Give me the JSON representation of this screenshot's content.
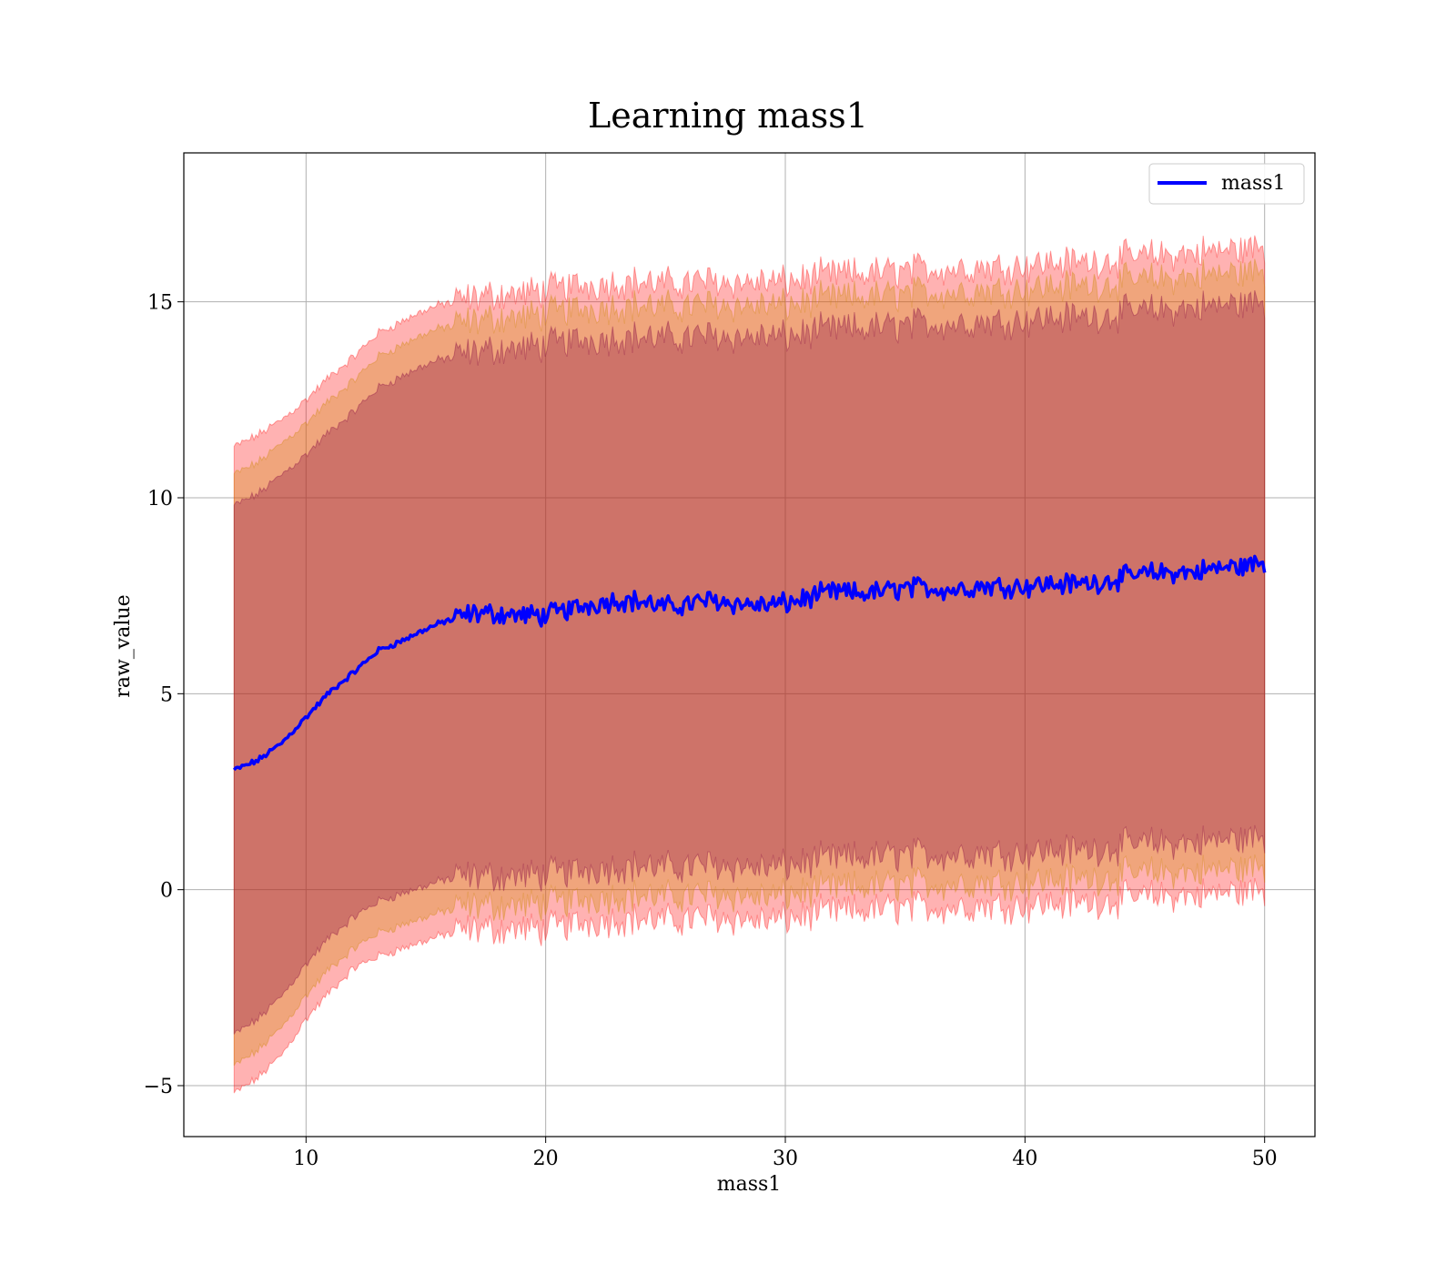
{
  "chart_data": {
    "type": "line",
    "title": "Learning mass1",
    "xlabel": "mass1",
    "ylabel": "raw_value",
    "xlim": [
      4.9,
      52.1
    ],
    "ylim": [
      -6.3,
      18.8
    ],
    "x_ticks": [
      10,
      20,
      30,
      40,
      50
    ],
    "y_ticks": [
      -5,
      0,
      5,
      10,
      15
    ],
    "x_tick_labels": [
      "10",
      "20",
      "30",
      "40",
      "50"
    ],
    "y_tick_labels": [
      "−5",
      "0",
      "5",
      "10",
      "15"
    ],
    "grid": true,
    "legend": {
      "position": "upper right",
      "entries": [
        "mass1"
      ]
    },
    "colors": {
      "line": "#0000ff",
      "band_outer": "#ff0000",
      "band_middle": "#cc8800",
      "band_inner": "#800040",
      "grid": "#b0b0b0"
    },
    "series": [
      {
        "name": "mass1",
        "x": [
          7,
          8,
          9,
          10,
          11,
          12,
          13,
          14,
          15,
          16,
          17,
          18,
          19,
          20,
          21,
          22,
          23,
          24,
          25,
          26,
          27,
          28,
          29,
          30,
          31,
          32,
          33,
          34,
          35,
          36,
          37,
          38,
          39,
          40,
          41,
          42,
          43,
          44,
          45,
          46,
          47,
          48,
          49,
          50
        ],
        "y": [
          3.05,
          3.3,
          3.75,
          4.4,
          5.05,
          5.55,
          6.1,
          6.35,
          6.65,
          6.9,
          7.05,
          7.05,
          7.0,
          7.0,
          7.15,
          7.3,
          7.4,
          7.35,
          7.2,
          7.3,
          7.4,
          7.3,
          7.25,
          7.3,
          7.45,
          7.6,
          7.55,
          7.6,
          7.7,
          7.7,
          7.65,
          7.75,
          7.75,
          7.75,
          7.8,
          7.8,
          7.85,
          7.95,
          8.05,
          8.1,
          8.1,
          8.2,
          8.25,
          8.35
        ]
      }
    ],
    "bands": [
      {
        "color": "#ff0000",
        "lower": [
          -5.2,
          -4.8,
          -4.2,
          -3.3,
          -2.6,
          -2.0,
          -1.7,
          -1.5,
          -1.3,
          -1.1,
          -1.0,
          -1.0,
          -1.0,
          -1.0,
          -0.9,
          -0.8,
          -0.75,
          -0.75,
          -0.8,
          -0.75,
          -0.7,
          -0.75,
          -0.8,
          -0.75,
          -0.65,
          -0.55,
          -0.55,
          -0.5,
          -0.45,
          -0.45,
          -0.45,
          -0.4,
          -0.4,
          -0.4,
          -0.35,
          -0.35,
          -0.3,
          -0.25,
          -0.2,
          -0.15,
          -0.15,
          -0.1,
          -0.05,
          0.0
        ],
        "upper": [
          11.3,
          11.6,
          12.0,
          12.5,
          13.1,
          13.6,
          14.2,
          14.5,
          14.8,
          15.0,
          15.1,
          15.2,
          15.2,
          15.3,
          15.4,
          15.45,
          15.5,
          15.5,
          15.45,
          15.5,
          15.55,
          15.5,
          15.5,
          15.5,
          15.6,
          15.7,
          15.7,
          15.75,
          15.8,
          15.85,
          15.85,
          15.9,
          15.9,
          15.95,
          16.0,
          16.0,
          16.05,
          16.1,
          16.15,
          16.2,
          16.25,
          16.3,
          16.35,
          16.4
        ]
      },
      {
        "color": "#cc8800",
        "lower": [
          -4.5,
          -4.1,
          -3.5,
          -2.7,
          -2.0,
          -1.5,
          -1.1,
          -0.9,
          -0.7,
          -0.5,
          -0.4,
          -0.4,
          -0.4,
          -0.35,
          -0.3,
          -0.2,
          -0.15,
          -0.15,
          -0.2,
          -0.15,
          -0.1,
          -0.15,
          -0.2,
          -0.15,
          -0.05,
          0.05,
          0.05,
          0.1,
          0.15,
          0.15,
          0.15,
          0.2,
          0.2,
          0.2,
          0.25,
          0.25,
          0.3,
          0.35,
          0.4,
          0.45,
          0.45,
          0.5,
          0.55,
          0.6
        ],
        "upper": [
          10.6,
          10.9,
          11.4,
          11.9,
          12.5,
          13.0,
          13.6,
          13.9,
          14.2,
          14.4,
          14.5,
          14.6,
          14.6,
          14.7,
          14.8,
          14.85,
          14.9,
          14.9,
          14.85,
          14.9,
          14.95,
          14.9,
          14.9,
          14.9,
          15.0,
          15.1,
          15.1,
          15.15,
          15.2,
          15.25,
          15.25,
          15.3,
          15.3,
          15.35,
          15.4,
          15.4,
          15.45,
          15.5,
          15.55,
          15.6,
          15.65,
          15.7,
          15.75,
          15.8
        ]
      },
      {
        "color": "#800040",
        "lower": [
          -3.7,
          -3.3,
          -2.7,
          -1.9,
          -1.2,
          -0.7,
          -0.3,
          -0.1,
          0.1,
          0.3,
          0.35,
          0.35,
          0.35,
          0.4,
          0.45,
          0.55,
          0.6,
          0.6,
          0.55,
          0.6,
          0.65,
          0.6,
          0.55,
          0.6,
          0.7,
          0.8,
          0.8,
          0.85,
          0.9,
          0.9,
          0.9,
          0.95,
          0.95,
          0.95,
          1.0,
          1.0,
          1.05,
          1.1,
          1.15,
          1.2,
          1.2,
          1.25,
          1.3,
          1.35
        ],
        "upper": [
          9.8,
          10.1,
          10.6,
          11.1,
          11.7,
          12.2,
          12.8,
          13.1,
          13.4,
          13.6,
          13.7,
          13.8,
          13.8,
          13.9,
          14.0,
          14.05,
          14.1,
          14.1,
          14.05,
          14.1,
          14.15,
          14.1,
          14.1,
          14.1,
          14.2,
          14.3,
          14.3,
          14.35,
          14.4,
          14.45,
          14.45,
          14.5,
          14.5,
          14.55,
          14.6,
          14.6,
          14.65,
          14.7,
          14.75,
          14.8,
          14.85,
          14.9,
          14.95,
          15.0
        ]
      }
    ]
  }
}
